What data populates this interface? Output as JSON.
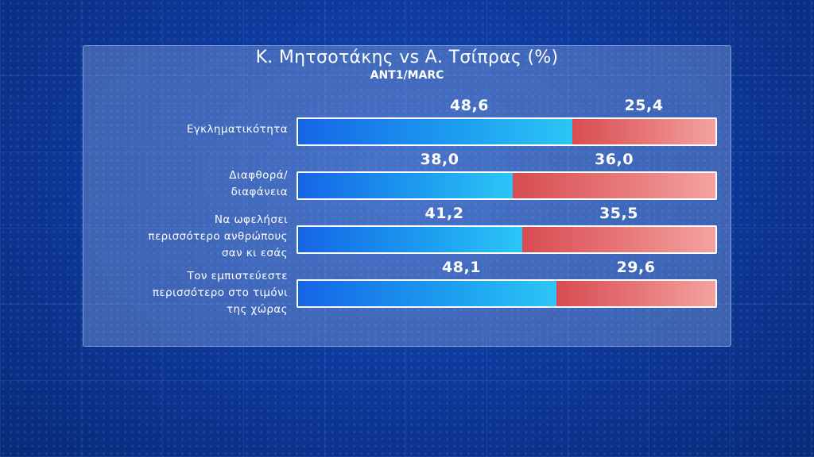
{
  "chart_data": {
    "type": "bar",
    "orientation": "horizontal",
    "stacked": true,
    "title": "Κ. Μητσοτάκης vs Α. Τσίπρας (%)",
    "subtitle": "ANT1/MARC",
    "categories": [
      "Εγκληματικότητα",
      "Διαφθορά/ διαφάνεια",
      "Να ωφελήσει περισσότερο ανθρώπους σαν κι εσάς",
      "Τον εμπιστεύεστε περισσότερο στο τιμόνι της χώρας"
    ],
    "category_lines": [
      [
        "Εγκληματικότητα"
      ],
      [
        "Διαφθορά/",
        "διαφάνεια"
      ],
      [
        "Να ωφελήσει",
        "περισσότερο ανθρώπους",
        "σαν κι εσάς"
      ],
      [
        "Τον εμπιστεύεστε",
        "περισσότερο στο τιμόνι",
        "της χώρας"
      ]
    ],
    "series": [
      {
        "color": "#1d9ff0",
        "values": [
          48.6,
          38.0,
          41.2,
          48.1
        ],
        "labels": [
          "48,6",
          "38,0",
          "41,2",
          "48,1"
        ]
      },
      {
        "color": "#e8797a",
        "values": [
          25.4,
          36.0,
          35.5,
          29.6
        ],
        "labels": [
          "25,4",
          "36,0",
          "35,5",
          "29,6"
        ]
      }
    ],
    "legend": "none",
    "grid": false
  }
}
